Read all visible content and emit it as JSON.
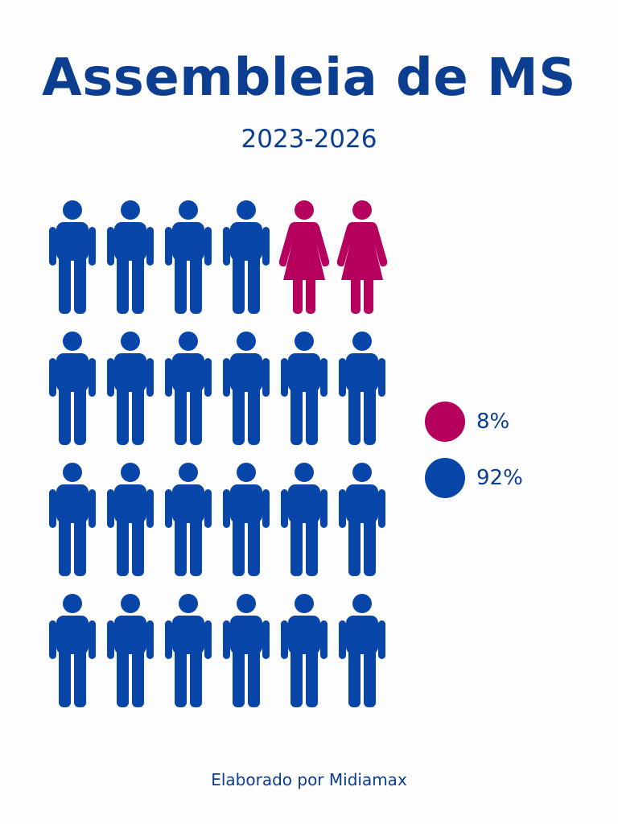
{
  "title": "Assembleia de MS",
  "subtitle": "2023-2026",
  "footer": "Elaborado por Midiamax",
  "colors": {
    "text": "#0b3e91",
    "male": "#0845a8",
    "female": "#b5005e"
  },
  "chart_data": {
    "type": "pictogram",
    "icon_grid": {
      "rows": 4,
      "columns": 6
    },
    "series": [
      {
        "name": "",
        "icon": "woman-icon",
        "count": 2,
        "percent_label": "8%",
        "color": "#b5005e"
      },
      {
        "name": "",
        "icon": "man-icon",
        "count": 22,
        "percent_label": "92%",
        "color": "#0845a8"
      }
    ],
    "icon_order": [
      "man-icon",
      "man-icon",
      "man-icon",
      "man-icon",
      "woman-icon",
      "woman-icon",
      "man-icon",
      "man-icon",
      "man-icon",
      "man-icon",
      "man-icon",
      "man-icon",
      "man-icon",
      "man-icon",
      "man-icon",
      "man-icon",
      "man-icon",
      "man-icon",
      "man-icon",
      "man-icon",
      "man-icon",
      "man-icon",
      "man-icon",
      "man-icon"
    ]
  },
  "legend": [
    {
      "label": "8%",
      "color": "#b5005e"
    },
    {
      "label": "92%",
      "color": "#0845a8"
    }
  ]
}
